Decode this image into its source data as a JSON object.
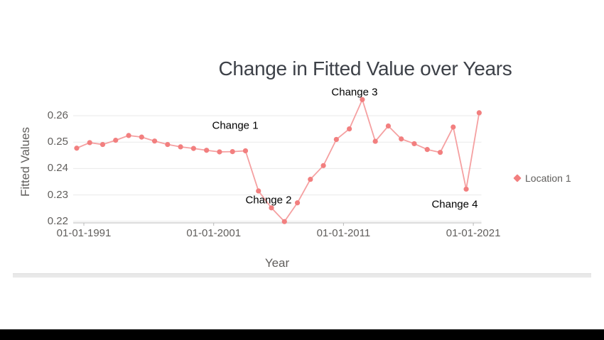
{
  "chart_data": {
    "type": "line",
    "title": "Change in Fitted Value over Years",
    "xlabel": "Year",
    "ylabel": "Fitted Values",
    "x_tick_labels": [
      "01-01-1991",
      "01-01-2001",
      "01-01-2011",
      "01-01-2021"
    ],
    "x_tick_years": [
      1991,
      2001,
      2011,
      2021
    ],
    "y_tick_labels": [
      "0.26",
      "0.25",
      "0.24",
      "0.23",
      "0.22"
    ],
    "y_tick_values": [
      0.26,
      0.25,
      0.24,
      0.23,
      0.22
    ],
    "ylim": [
      0.218,
      0.268
    ],
    "grid": "horizontal",
    "x": [
      1990,
      1991,
      1992,
      1993,
      1994,
      1995,
      1996,
      1997,
      1998,
      1999,
      2000,
      2001,
      2002,
      2003,
      2004,
      2005,
      2006,
      2007,
      2008,
      2009,
      2010,
      2011,
      2012,
      2013,
      2014,
      2015,
      2016,
      2017,
      2018,
      2019,
      2020,
      2021
    ],
    "series": [
      {
        "name": "Location 1",
        "marker_color": "#f27f7f",
        "line_color": "#f5a0a1",
        "values": [
          0.2477,
          0.2498,
          0.2491,
          0.2507,
          0.2525,
          0.2519,
          0.2504,
          0.2491,
          0.2482,
          0.2476,
          0.2469,
          0.2463,
          0.2464,
          0.2467,
          0.2315,
          0.2251,
          0.2199,
          0.227,
          0.2359,
          0.2411,
          0.251,
          0.255,
          0.2661,
          0.2503,
          0.2561,
          0.2512,
          0.2494,
          0.2472,
          0.2461,
          0.2557,
          0.2322,
          0.2611
        ]
      }
    ],
    "annotations": [
      {
        "label": "Change 1",
        "year": 2002.66,
        "value": 0.2562
      },
      {
        "label": "Change 2",
        "year": 2005.23,
        "value": 0.228
      },
      {
        "label": "Change 3",
        "year": 2011.85,
        "value": 0.2689
      },
      {
        "label": "Change 4",
        "year": 2019.57,
        "value": 0.2264
      }
    ],
    "legend": {
      "position": "right",
      "items": [
        "Location 1"
      ]
    }
  }
}
